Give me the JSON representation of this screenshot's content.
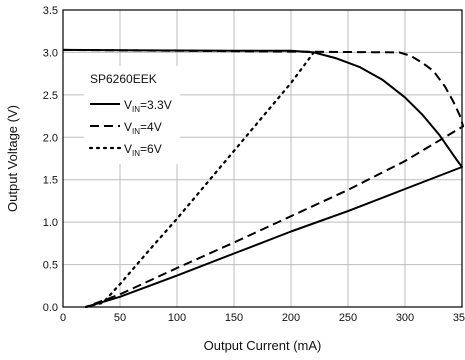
{
  "chart_data": {
    "type": "line",
    "title": "",
    "xlabel": "Output Current (mA)",
    "ylabel": "Output Voltage (V)",
    "xlim": [
      0,
      350
    ],
    "ylim": [
      0,
      3.5
    ],
    "x_ticks": [
      "0",
      "50",
      "100",
      "150",
      "200",
      "250",
      "300",
      "350"
    ],
    "y_ticks": [
      "0.0",
      "0.5",
      "1.0",
      "1.5",
      "2.0",
      "2.5",
      "3.0",
      "3.5"
    ],
    "grid": true,
    "legend": {
      "title": "SP6260EEK",
      "placement": "left",
      "entries": [
        {
          "prefix": "V",
          "sub": "IN",
          "suffix": "=3.3V"
        },
        {
          "prefix": "V",
          "sub": "IN",
          "suffix": "=4V"
        },
        {
          "prefix": "V",
          "sub": "IN",
          "suffix": "=6V"
        }
      ]
    },
    "series": [
      {
        "name": "VIN=3.3V",
        "style": "solid",
        "x": [
          0,
          150,
          200,
          220,
          240,
          260,
          280,
          300,
          315,
          330,
          345,
          350,
          300,
          250,
          200,
          150,
          100,
          50,
          20
        ],
        "y": [
          3.03,
          3.02,
          3.02,
          3.0,
          2.93,
          2.83,
          2.68,
          2.47,
          2.27,
          2.03,
          1.74,
          1.65,
          1.39,
          1.13,
          0.89,
          0.63,
          0.37,
          0.12,
          0.0
        ]
      },
      {
        "name": "VIN=4V",
        "style": "dashed",
        "x": [
          0,
          200,
          295,
          305,
          315,
          325,
          335,
          342,
          348,
          351,
          300,
          250,
          200,
          150,
          100,
          50,
          20
        ],
        "y": [
          3.03,
          3.01,
          3.0,
          2.96,
          2.88,
          2.78,
          2.6,
          2.43,
          2.26,
          2.13,
          1.72,
          1.38,
          1.07,
          0.76,
          0.46,
          0.15,
          0.0
        ]
      },
      {
        "name": "VIN=6V",
        "style": "dotted",
        "x": [
          220,
          200,
          175,
          150,
          125,
          100,
          75,
          50,
          35,
          20
        ],
        "y": [
          3.0,
          2.64,
          2.24,
          1.84,
          1.44,
          1.04,
          0.66,
          0.27,
          0.05,
          0.0
        ]
      }
    ]
  }
}
